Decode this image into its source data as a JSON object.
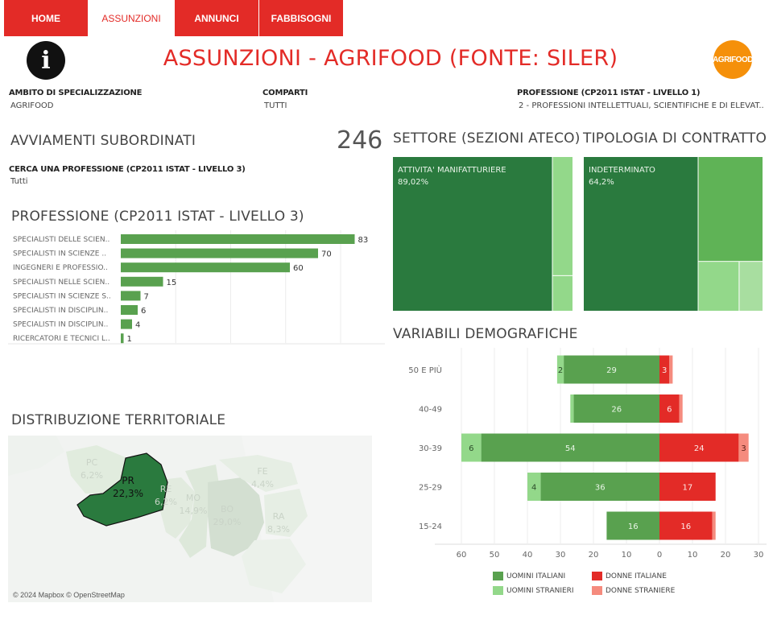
{
  "nav": {
    "tabs": [
      {
        "label": "HOME",
        "active": false
      },
      {
        "label": "ASSUNZIONI",
        "active": true
      },
      {
        "label": "ANNUNCI",
        "active": false
      },
      {
        "label": "FABBISOGNI",
        "active": false
      }
    ]
  },
  "header": {
    "title": "ASSUNZIONI - AGRIFOOD (FONTE: SILER)",
    "info_icon": "info-icon",
    "logo_text": "AGRIFOOD"
  },
  "filters": {
    "ambito": {
      "label": "AMBITO DI SPECIALIZZAZIONE",
      "value": "AGRIFOOD"
    },
    "comparti": {
      "label": "COMPARTI",
      "value": "TUTTI"
    },
    "professione": {
      "label": "PROFESSIONE (CP2011 ISTAT - LIVELLO 1)",
      "value": "2 - PROFESSIONI INTELLETTUALI, SCIENTIFICHE E DI ELEVAT.."
    },
    "cerca": {
      "label": "CERCA UNA PROFESSIONE (CP2011 ISTAT - LIVELLO 3)",
      "value": "Tutti"
    }
  },
  "kpi": {
    "label": "AVVIAMENTI SUBORDINATI",
    "value": "246"
  },
  "sections": {
    "professione": "PROFESSIONE (CP2011 ISTAT - LIVELLO 3)",
    "settore": "SETTORE (SEZIONI ATECO)",
    "tipologia": "TIPOLOGIA DI CONTRATTO",
    "demografiche": "VARIABILI DEMOGRAFICHE",
    "territoriale": "DISTRIBUZIONE TERRITORIALE"
  },
  "colors": {
    "nav_red": "#e32b27",
    "bar_green": "#59a14f",
    "dark_green": "#2a7a3e",
    "light_green": "#93d88a",
    "red": "#e32b27",
    "light_red": "#f58b7e",
    "logo_orange": "#f5900a"
  },
  "chart_data": [
    {
      "id": "professione",
      "type": "bar",
      "orientation": "horizontal",
      "categories": [
        "SPECIALISTI DELLE SCIEN..",
        "SPECIALISTI IN SCIENZE ..",
        "INGEGNERI E PROFESSIO..",
        "SPECIALISTI NELLE SCIEN..",
        "SPECIALISTI IN SCIENZE S..",
        "SPECIALISTI IN DISCIPLIN..",
        "SPECIALISTI IN DISCIPLIN..",
        "RICERCATORI E TECNICI L.."
      ],
      "values": [
        83,
        70,
        60,
        15,
        7,
        6,
        4,
        1
      ],
      "xlim": [
        0,
        100
      ]
    },
    {
      "id": "settore",
      "type": "treemap",
      "items": [
        {
          "label": "ATTIVITA' MANIFATTURIERE",
          "value_label": "89,02%",
          "value": 89.02
        },
        {
          "label": "",
          "value": 8.5
        },
        {
          "label": "",
          "value": 2.48
        }
      ]
    },
    {
      "id": "tipologia",
      "type": "treemap",
      "items": [
        {
          "label": "INDETERMINATO",
          "value_label": "64,2%",
          "value": 64.2
        },
        {
          "label": "",
          "value": 24.4
        },
        {
          "label": "",
          "value": 7.3
        },
        {
          "label": "",
          "value": 4.1
        }
      ]
    },
    {
      "id": "demografiche",
      "type": "bar",
      "orientation": "horizontal-diverging",
      "categories": [
        "50 E PIÙ",
        "40-49",
        "30-39",
        "25-29",
        "15-24"
      ],
      "series": [
        {
          "name": "UOMINI ITALIANI",
          "values": [
            29,
            26,
            54,
            36,
            16
          ]
        },
        {
          "name": "UOMINI STRANIERI",
          "values": [
            2,
            1,
            6,
            4,
            0
          ]
        },
        {
          "name": "DONNE ITALIANE",
          "values": [
            3,
            6,
            24,
            17,
            16
          ]
        },
        {
          "name": "DONNE STRANIERE",
          "values": [
            1,
            1,
            3,
            0,
            1
          ]
        }
      ],
      "value_labels": {
        "UOMINI ITALIANI": [
          "29",
          "26",
          "54",
          "36",
          "16"
        ],
        "UOMINI STRANIERI": [
          "2",
          "",
          "6",
          "4",
          ""
        ],
        "DONNE ITALIANE": [
          "3",
          "6",
          "24",
          "17",
          "16"
        ],
        "DONNE STRANIERE": [
          "",
          "",
          "3",
          "",
          ""
        ]
      },
      "xticks": [
        "60",
        "50",
        "40",
        "30",
        "20",
        "10",
        "0",
        "10",
        "20",
        "30"
      ],
      "xlim": [
        -63,
        30
      ]
    },
    {
      "id": "territoriale",
      "type": "map",
      "regions": [
        {
          "code": "PC",
          "value": "6,2%",
          "highlighted": false
        },
        {
          "code": "PR",
          "value": "22,3%",
          "highlighted": true
        },
        {
          "code": "RE",
          "value": "6,2%",
          "highlighted": false
        },
        {
          "code": "MO",
          "value": "14,9%",
          "highlighted": false
        },
        {
          "code": "BO",
          "value": "29,0%",
          "highlighted": false
        },
        {
          "code": "FE",
          "value": "4,4%",
          "highlighted": false
        },
        {
          "code": "RA",
          "value": "8,3%",
          "highlighted": false
        }
      ],
      "credit": "© 2024 Mapbox © OpenStreetMap"
    }
  ]
}
